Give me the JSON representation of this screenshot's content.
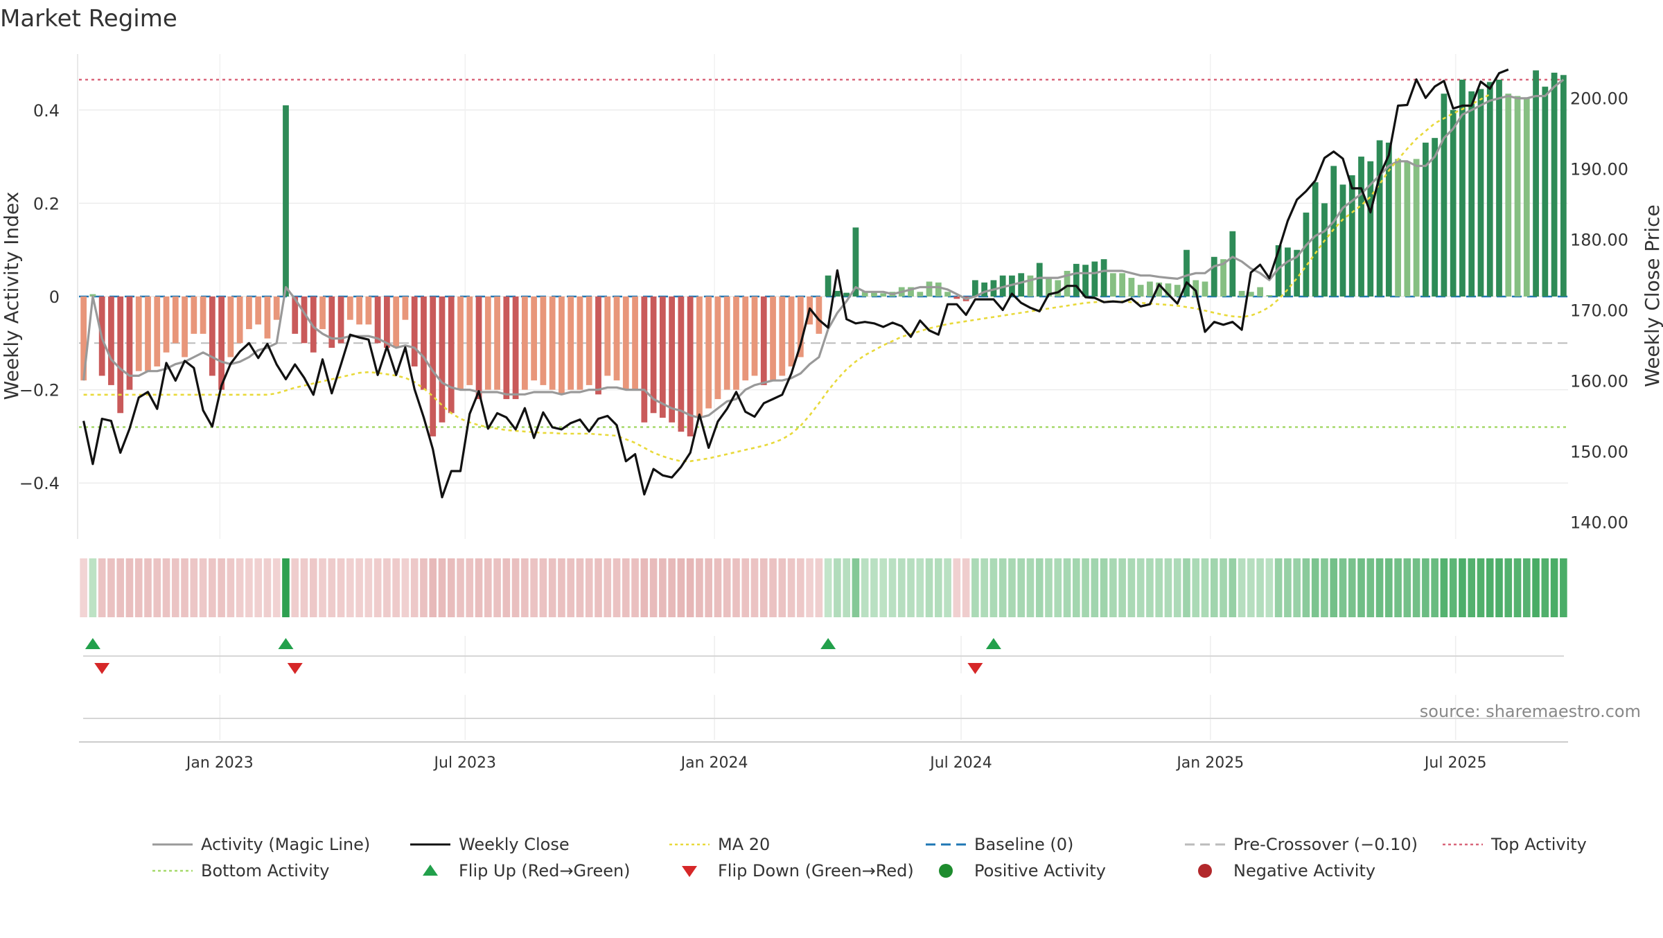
{
  "chart_data": {
    "type": "bar",
    "title": "Market Regime",
    "source": "source: sharemaestro.com",
    "y_left": {
      "label": "Weekly Activity Index",
      "range": [
        -0.52,
        0.52
      ],
      "ticks": [
        0.4,
        0.2,
        0,
        -0.2,
        -0.4
      ],
      "tick_labels": [
        "0.4",
        "0.2",
        "0",
        "−0.2",
        "−0.4"
      ]
    },
    "y_right": {
      "label": "Weekly Close Price",
      "range": [
        137.6,
        206.2
      ],
      "ticks": [
        200,
        190,
        180,
        170,
        160,
        150,
        140
      ],
      "tick_labels": [
        "200.00",
        "190.00",
        "180.00",
        "170.00",
        "160.00",
        "150.00",
        "140.00"
      ]
    },
    "x_axis": {
      "start": "2022-09-19",
      "end": "2025-09-22",
      "ticks": [
        "2023-01-01",
        "2023-07-01",
        "2024-01-01",
        "2024-07-01",
        "2025-01-01",
        "2025-07-01"
      ],
      "tick_labels": [
        "Jan 2023",
        "Jul 2023",
        "Jan 2024",
        "Jul 2024",
        "Jan 2025",
        "Jul 2025"
      ]
    },
    "reference_lines": {
      "top_activity": 0.465,
      "bottom_activity": -0.28,
      "baseline": 0,
      "pre_crossover": -0.1
    },
    "colors": {
      "positive_dark": "#2e8b57",
      "positive_light": "#86bf82",
      "negative_dark": "#c95a5a",
      "negative_light": "#e8967a",
      "magic_line": "#999999",
      "weekly_close": "#111111",
      "ma20": "#e8d93a",
      "baseline": "#1f77b4",
      "pre_crossover": "#bbbbbb",
      "top_activity": "#d9667a",
      "bottom_activity": "#a6d96a",
      "flip_up": "#22a04b",
      "flip_down": "#d62728",
      "positive_marker": "#1e8c2e",
      "negative_marker": "#b2282b"
    },
    "series": [
      {
        "name": "Weekly Activity Index",
        "values": [
          -0.18,
          0.005,
          -0.17,
          -0.19,
          -0.25,
          -0.2,
          -0.16,
          -0.16,
          -0.15,
          -0.12,
          -0.1,
          -0.13,
          -0.08,
          -0.08,
          -0.17,
          -0.2,
          -0.13,
          -0.1,
          -0.07,
          -0.06,
          -0.09,
          -0.05,
          0.41,
          -0.08,
          -0.1,
          -0.12,
          -0.07,
          -0.11,
          -0.1,
          -0.05,
          -0.06,
          -0.06,
          -0.1,
          -0.11,
          -0.11,
          -0.05,
          -0.15,
          -0.2,
          -0.3,
          -0.27,
          -0.25,
          -0.2,
          -0.19,
          -0.22,
          -0.2,
          -0.2,
          -0.22,
          -0.22,
          -0.2,
          -0.18,
          -0.19,
          -0.2,
          -0.21,
          -0.2,
          -0.2,
          -0.19,
          -0.21,
          -0.17,
          -0.18,
          -0.2,
          -0.2,
          -0.27,
          -0.25,
          -0.26,
          -0.27,
          -0.29,
          -0.3,
          -0.26,
          -0.24,
          -0.22,
          -0.2,
          -0.2,
          -0.18,
          -0.17,
          -0.19,
          -0.18,
          -0.17,
          -0.15,
          -0.13,
          -0.06,
          -0.08,
          0.045,
          0.012,
          0.008,
          0.148,
          0.01,
          0.01,
          0.007,
          0.01,
          0.02,
          0.02,
          0.01,
          0.032,
          0.03,
          0.01,
          -0.005,
          -0.01,
          0.035,
          0.03,
          0.035,
          0.045,
          0.045,
          0.05,
          0.045,
          0.072,
          0.04,
          0.035,
          0.055,
          0.07,
          0.068,
          0.075,
          0.08,
          0.05,
          0.05,
          0.04,
          0.025,
          0.032,
          0.03,
          0.028,
          0.025,
          0.1,
          0.035,
          0.032,
          0.085,
          0.08,
          0.14,
          0.012,
          0.01,
          0.02,
          0.003,
          0.11,
          0.105,
          0.1,
          0.18,
          0.245,
          0.2,
          0.28,
          0.24,
          0.26,
          0.3,
          0.29,
          0.335,
          0.33,
          0.295,
          0.29,
          0.295,
          0.33,
          0.34,
          0.435,
          0.4,
          0.465,
          0.44,
          0.445,
          0.46,
          0.465,
          0.435,
          0.43,
          0.425,
          0.485,
          0.45,
          0.48,
          0.475
        ],
        "chart_type": "bar"
      },
      {
        "name": "Activity (Magic Line)",
        "values": [
          -0.18,
          0,
          -0.09,
          -0.135,
          -0.155,
          -0.17,
          -0.17,
          -0.16,
          -0.16,
          -0.155,
          -0.145,
          -0.14,
          -0.13,
          -0.12,
          -0.13,
          -0.14,
          -0.145,
          -0.14,
          -0.13,
          -0.115,
          -0.11,
          -0.1,
          0.02,
          -0.005,
          -0.035,
          -0.065,
          -0.08,
          -0.09,
          -0.09,
          -0.085,
          -0.085,
          -0.085,
          -0.09,
          -0.1,
          -0.11,
          -0.105,
          -0.11,
          -0.13,
          -0.16,
          -0.185,
          -0.195,
          -0.2,
          -0.2,
          -0.205,
          -0.205,
          -0.205,
          -0.21,
          -0.21,
          -0.21,
          -0.205,
          -0.205,
          -0.205,
          -0.21,
          -0.205,
          -0.205,
          -0.2,
          -0.2,
          -0.195,
          -0.195,
          -0.2,
          -0.2,
          -0.2,
          -0.22,
          -0.23,
          -0.24,
          -0.245,
          -0.255,
          -0.26,
          -0.255,
          -0.24,
          -0.225,
          -0.22,
          -0.2,
          -0.19,
          -0.185,
          -0.18,
          -0.18,
          -0.175,
          -0.165,
          -0.145,
          -0.13,
          -0.07,
          -0.035,
          -0.01,
          0.02,
          0.01,
          0.01,
          0.01,
          0.005,
          0.01,
          0.015,
          0.02,
          0.02,
          0.02,
          0.015,
          0.005,
          -0.005,
          0,
          0.01,
          0.015,
          0.02,
          0.025,
          0.03,
          0.035,
          0.04,
          0.04,
          0.04,
          0.045,
          0.05,
          0.05,
          0.05,
          0.055,
          0.055,
          0.055,
          0.05,
          0.045,
          0.045,
          0.042,
          0.04,
          0.038,
          0.045,
          0.05,
          0.05,
          0.065,
          0.07,
          0.085,
          0.075,
          0.06,
          0.05,
          0.035,
          0.06,
          0.075,
          0.085,
          0.11,
          0.13,
          0.14,
          0.16,
          0.19,
          0.205,
          0.22,
          0.24,
          0.26,
          0.28,
          0.29,
          0.29,
          0.28,
          0.28,
          0.3,
          0.34,
          0.36,
          0.39,
          0.4,
          0.41,
          0.42,
          0.425,
          0.43,
          0.425,
          0.425,
          0.43,
          0.43,
          0.45,
          0.465
        ],
        "chart_type": "line"
      },
      {
        "name": "Weekly Close",
        "values": [
          154.3,
          148.2,
          154.6,
          154.3,
          149.8,
          153.2,
          157.6,
          158.4,
          156,
          162.5,
          160,
          162.8,
          161.8,
          155.8,
          153.5,
          159.3,
          162.4,
          164.1,
          165.3,
          163.2,
          165.2,
          162.3,
          160.2,
          162.3,
          160.4,
          158,
          163,
          158.2,
          162.3,
          166.5,
          166.1,
          165.8,
          160.8,
          164.8,
          160.8,
          164.7,
          158.8,
          154.8,
          150.3,
          143.5,
          147.2,
          147.2,
          155.3,
          158.5,
          153.2,
          155.4,
          154.8,
          153.1,
          156.1,
          151.9,
          155.5,
          153.4,
          153.1,
          154,
          154.5,
          152.8,
          154.6,
          155,
          153.7,
          148.6,
          149.6,
          143.9,
          147.5,
          146.6,
          146.3,
          147.8,
          149.8,
          155.2,
          150.5,
          154.2,
          156,
          158.4,
          155.6,
          154.9,
          156.8,
          157.4,
          158,
          161,
          165.1,
          170.2,
          168.6,
          167.5,
          175.6,
          168.7,
          168.1,
          168.3,
          168.1,
          167.6,
          168.2,
          167.7,
          166.2,
          168.5,
          167.1,
          166.5,
          170.8,
          170.8,
          169.3,
          171.5,
          171.5,
          171.5,
          170,
          172.3,
          171,
          170.3,
          169.8,
          172.2,
          172.5,
          173.4,
          173.4,
          171.8,
          171.7,
          171.1,
          171.2,
          171.1,
          171.6,
          170.5,
          170.8,
          173.6,
          172.2,
          170.9,
          173.9,
          172.7,
          166.9,
          168.3,
          167.9,
          168.3,
          167.2,
          175.3,
          176.4,
          174.5,
          178.4,
          182.6,
          185.6,
          186.8,
          188.3,
          191.5,
          192.4,
          191.4,
          187.2,
          187.2,
          183.8,
          189,
          191.9,
          198.9,
          199,
          202.6,
          200,
          201.6,
          202.4,
          198.5,
          198.9,
          198.9,
          202.3,
          201.3,
          203.5,
          204
        ],
        "chart_type": "line"
      },
      {
        "name": "MA 20",
        "values": [
          158,
          158,
          158,
          158,
          158,
          158,
          158,
          158,
          158,
          158,
          158,
          158,
          158,
          158,
          158,
          158,
          158,
          158,
          158,
          158,
          158,
          158.2,
          158.6,
          159,
          159.3,
          159.6,
          159.9,
          160.2,
          160.5,
          160.8,
          161.1,
          161.2,
          161.1,
          160.9,
          160.7,
          160.4,
          159.8,
          158.9,
          157.8,
          156.5,
          155.4,
          154.6,
          154.1,
          153.7,
          153.4,
          153.2,
          153,
          152.9,
          152.8,
          152.7,
          152.6,
          152.6,
          152.5,
          152.5,
          152.5,
          152.5,
          152.4,
          152.3,
          152.2,
          151.7,
          151.2,
          150.5,
          149.8,
          149.3,
          148.9,
          148.6,
          148.6,
          148.8,
          149,
          149.3,
          149.6,
          149.9,
          150.2,
          150.5,
          150.8,
          151.2,
          151.7,
          152.5,
          153.6,
          155.1,
          156.8,
          158.6,
          160.2,
          161.6,
          162.7,
          163.6,
          164.3,
          165,
          165.6,
          166.2,
          166.6,
          167,
          167.4,
          167.7,
          168,
          168.2,
          168.4,
          168.6,
          168.8,
          169,
          169.2,
          169.4,
          169.6,
          169.8,
          170,
          170.2,
          170.4,
          170.6,
          170.8,
          171,
          171.1,
          171.2,
          171.2,
          171.2,
          171.1,
          171,
          170.9,
          170.8,
          170.7,
          170.6,
          170.4,
          170.2,
          169.9,
          169.6,
          169.3,
          169.1,
          169,
          169.2,
          169.7,
          170.4,
          171.5,
          172.9,
          174.5,
          176.2,
          178,
          179.8,
          181.4,
          182.8,
          183.8,
          184.8,
          186,
          187.8,
          189.7,
          191.3,
          192.8,
          194.2,
          195.3,
          196.4,
          197.1,
          197.8,
          198.4,
          199.1,
          199.8,
          200.5
        ],
        "chart_type": "line"
      }
    ],
    "regime_strip": [
      0.08,
      0.18,
      0.25,
      0.27,
      0.29,
      0.3,
      0.28,
      0.27,
      0.25,
      0.25,
      0.24,
      0.25,
      0.22,
      0.2,
      0.23,
      0.25,
      0.2,
      0.15,
      0.13,
      0.12,
      0.14,
      0.1,
      1,
      0.15,
      0.17,
      0.2,
      0.15,
      0.17,
      0.16,
      0.12,
      0.13,
      0.12,
      0.16,
      0.17,
      0.18,
      0.12,
      0.2,
      0.27,
      0.35,
      0.33,
      0.32,
      0.27,
      0.26,
      0.3,
      0.28,
      0.27,
      0.3,
      0.29,
      0.27,
      0.25,
      0.26,
      0.27,
      0.28,
      0.27,
      0.27,
      0.26,
      0.28,
      0.25,
      0.26,
      0.28,
      0.28,
      0.35,
      0.33,
      0.34,
      0.35,
      0.37,
      0.38,
      0.34,
      0.32,
      0.3,
      0.28,
      0.28,
      0.26,
      0.25,
      0.27,
      0.26,
      0.25,
      0.22,
      0.2,
      0.12,
      0.14,
      0.15,
      0.25,
      0.22,
      0.5,
      0.2,
      0.2,
      0.18,
      0.2,
      0.22,
      0.22,
      0.2,
      0.25,
      0.24,
      0.2,
      0.12,
      0.15,
      0.28,
      0.26,
      0.28,
      0.3,
      0.3,
      0.31,
      0.3,
      0.34,
      0.29,
      0.28,
      0.31,
      0.33,
      0.33,
      0.34,
      0.35,
      0.3,
      0.3,
      0.29,
      0.27,
      0.28,
      0.28,
      0.27,
      0.27,
      0.36,
      0.28,
      0.28,
      0.34,
      0.33,
      0.4,
      0.22,
      0.22,
      0.24,
      0.2,
      0.4,
      0.4,
      0.39,
      0.47,
      0.55,
      0.5,
      0.6,
      0.55,
      0.57,
      0.62,
      0.61,
      0.65,
      0.65,
      0.61,
      0.6,
      0.61,
      0.65,
      0.66,
      0.78,
      0.73,
      0.82,
      0.79,
      0.8,
      0.82,
      0.82,
      0.79,
      0.78,
      0.77,
      0.85,
      0.8,
      0.84,
      0.84
    ],
    "flip_up_weeks": [
      1,
      22,
      81,
      99
    ],
    "flip_down_weeks": [
      2,
      23,
      97
    ],
    "legend": [
      {
        "label": "Activity (Magic Line)",
        "kind": "line",
        "color": "#999999",
        "dash": ""
      },
      {
        "label": "Weekly Close",
        "kind": "line",
        "color": "#111111",
        "dash": ""
      },
      {
        "label": "MA 20",
        "kind": "line",
        "color": "#e8d93a",
        "dash": "4,4"
      },
      {
        "label": "Baseline (0)",
        "kind": "line",
        "color": "#1f77b4",
        "dash": "14,8"
      },
      {
        "label": "Pre-Crossover (−0.10)",
        "kind": "line",
        "color": "#bbbbbb",
        "dash": "14,8"
      },
      {
        "label": "Top Activity",
        "kind": "line",
        "color": "#d9667a",
        "dash": "4,4"
      },
      {
        "label": "Bottom Activity",
        "kind": "line",
        "color": "#a6d96a",
        "dash": "4,4"
      },
      {
        "label": "Flip Up (Red→Green)",
        "kind": "triangle-up",
        "color": "#22a04b",
        "dash": ""
      },
      {
        "label": "Flip Down (Green→Red)",
        "kind": "triangle-down",
        "color": "#d62728",
        "dash": ""
      },
      {
        "label": "Positive Activity",
        "kind": "circle",
        "color": "#1e8c2e",
        "dash": ""
      },
      {
        "label": "Negative Activity",
        "kind": "circle",
        "color": "#b2282b",
        "dash": ""
      }
    ]
  }
}
